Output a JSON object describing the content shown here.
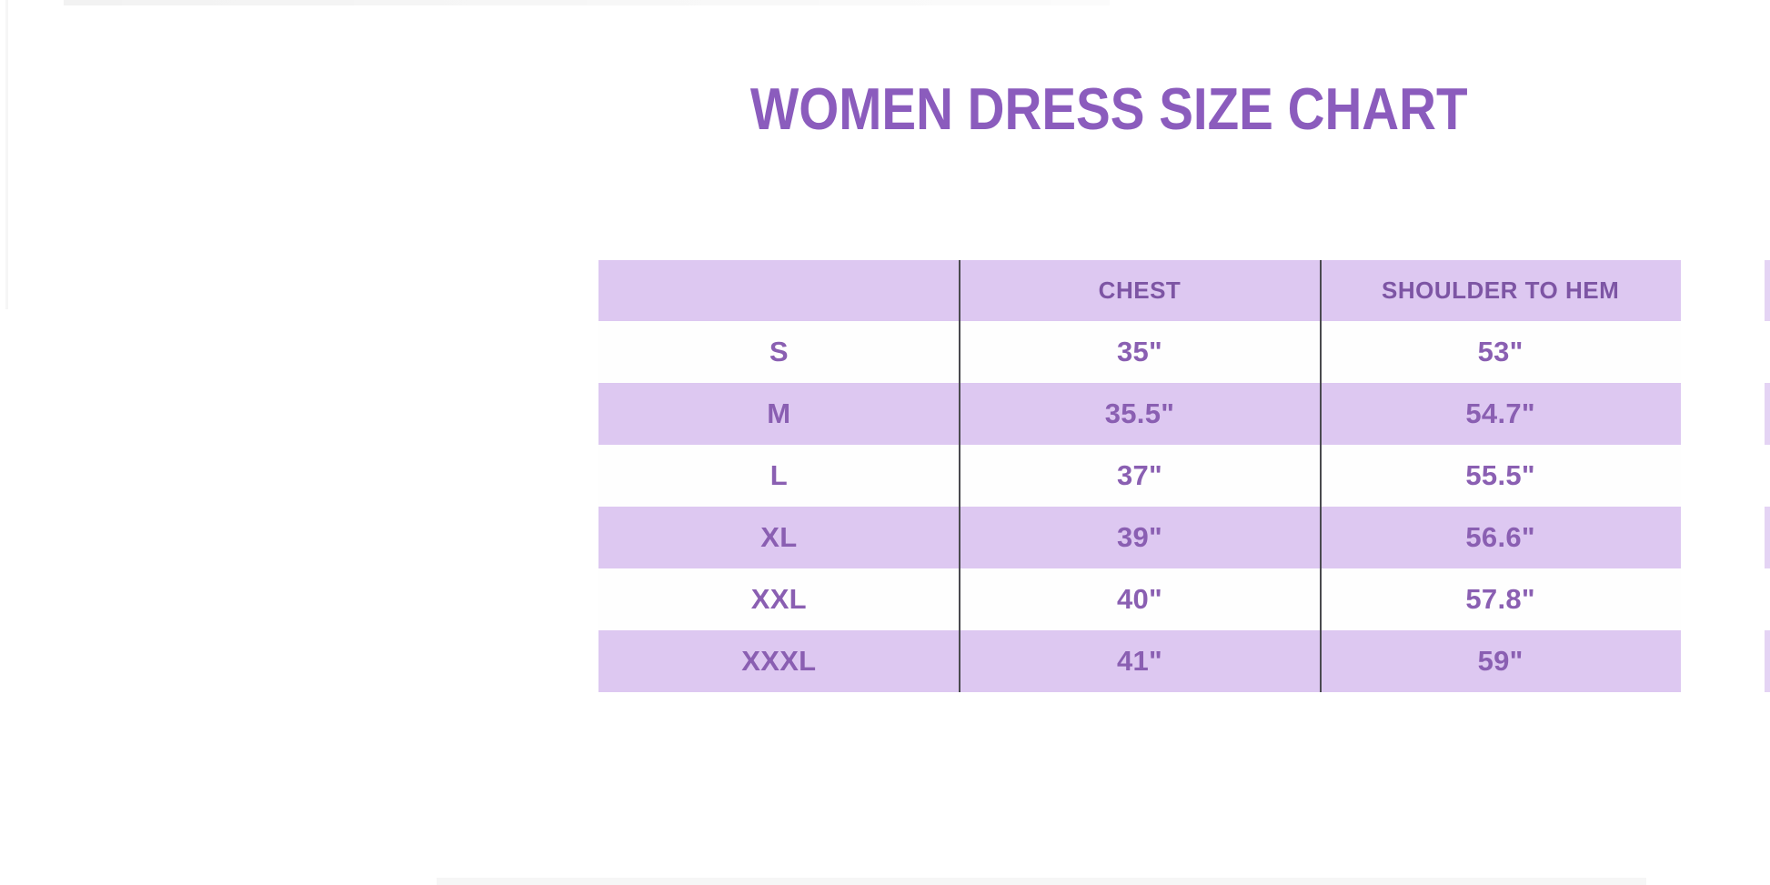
{
  "title": {
    "text": "WOMEN DRESS SIZE CHART",
    "color": "#8b5cbd"
  },
  "table": {
    "columns": [
      "",
      "CHEST",
      "SHOULDER TO HEM"
    ],
    "rows": [
      {
        "size": "S",
        "chest": "35\"",
        "shoulder_to_hem": "53\""
      },
      {
        "size": "M",
        "chest": "35.5\"",
        "shoulder_to_hem": "54.7\""
      },
      {
        "size": "L",
        "chest": "37\"",
        "shoulder_to_hem": "55.5\""
      },
      {
        "size": "XL",
        "chest": "39\"",
        "shoulder_to_hem": "56.6\""
      },
      {
        "size": "XXL",
        "chest": "40\"",
        "shoulder_to_hem": "57.8\""
      },
      {
        "size": "XXXL",
        "chest": "41\"",
        "shoulder_to_hem": "59\""
      }
    ],
    "colors": {
      "band_lavender": "#ddc8f1",
      "band_white": "#fefefe",
      "header_text": "#7d55a4",
      "row_text": "#8a5fb2",
      "divider": "#4a4a4f"
    }
  },
  "chart_data": {
    "type": "table",
    "title": "WOMEN DRESS SIZE CHART",
    "columns": [
      "",
      "CHEST",
      "SHOULDER TO HEM"
    ],
    "rows": [
      [
        "S",
        "35\"",
        "53\""
      ],
      [
        "M",
        "35.5\"",
        "54.7\""
      ],
      [
        "L",
        "37\"",
        "55.5\""
      ],
      [
        "XL",
        "39\"",
        "56.6\""
      ],
      [
        "XXL",
        "40\"",
        "57.8\""
      ],
      [
        "XXXL",
        "41\"",
        "59\""
      ]
    ],
    "chest_values_in": [
      35,
      35.5,
      37,
      39,
      40,
      41
    ],
    "shoulder_to_hem_values_in": [
      53,
      54.7,
      55.5,
      56.6,
      57.8,
      59
    ],
    "layout": {
      "banding": "alternating lavender/white, header lavender",
      "grid": "two vertical dividers only"
    }
  }
}
